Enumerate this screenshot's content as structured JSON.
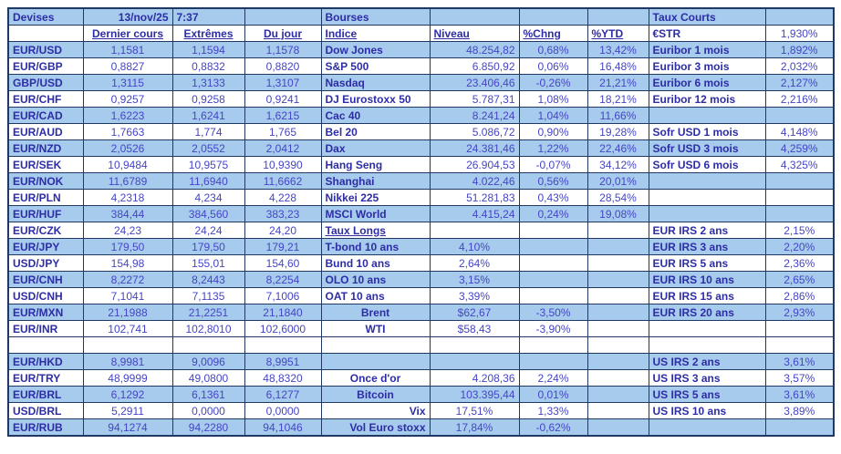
{
  "colors": {
    "row_blue": "#A7CBED",
    "grid_border": "#1F3864",
    "label_text": "#2D2DA6",
    "value_text": "#4545C5"
  },
  "devises": {
    "title": "Devises",
    "date": "13/nov/25",
    "time": "7:37",
    "headers": [
      "Dernier cours",
      "Extrêmes",
      "Du jour"
    ],
    "rows": [
      {
        "pair": "EUR/USD",
        "last": "1,1581",
        "ext": "1,1594",
        "day": "1,1578"
      },
      {
        "pair": "EUR/GBP",
        "last": "0,8827",
        "ext": "0,8832",
        "day": "0,8820"
      },
      {
        "pair": "GBP/USD",
        "last": "1,3115",
        "ext": "1,3133",
        "day": "1,3107"
      },
      {
        "pair": "EUR/CHF",
        "last": "0,9257",
        "ext": "0,9258",
        "day": "0,9241"
      },
      {
        "pair": "EUR/CAD",
        "last": "1,6223",
        "ext": "1,6241",
        "day": "1,6215"
      },
      {
        "pair": "EUR/AUD",
        "last": "1,7663",
        "ext": "1,774",
        "day": "1,765"
      },
      {
        "pair": "EUR/NZD",
        "last": "2,0526",
        "ext": "2,0552",
        "day": "2,0412"
      },
      {
        "pair": "EUR/SEK",
        "last": "10,9484",
        "ext": "10,9575",
        "day": "10,9390"
      },
      {
        "pair": "EUR/NOK",
        "last": "11,6789",
        "ext": "11,6940",
        "day": "11,6662"
      },
      {
        "pair": "EUR/PLN",
        "last": "4,2318",
        "ext": "4,234",
        "day": "4,228"
      },
      {
        "pair": "EUR/HUF",
        "last": "384,44",
        "ext": "384,560",
        "day": "383,23"
      },
      {
        "pair": "EUR/CZK",
        "last": "24,23",
        "ext": "24,24",
        "day": "24,20"
      },
      {
        "pair": "EUR/JPY",
        "last": "179,50",
        "ext": "179,50",
        "day": "179,21"
      },
      {
        "pair": "USD/JPY",
        "last": "154,98",
        "ext": "155,01",
        "day": "154,60"
      },
      {
        "pair": "EUR/CNH",
        "last": "8,2272",
        "ext": "8,2443",
        "day": "8,2254"
      },
      {
        "pair": "USD/CNH",
        "last": "7,1041",
        "ext": "7,1135",
        "day": "7,1006"
      },
      {
        "pair": "EUR/MXN",
        "last": "21,1988",
        "ext": "21,2251",
        "day": "21,1840"
      },
      {
        "pair": "EUR/INR",
        "last": "102,741",
        "ext": "102,8010",
        "day": "102,6000"
      },
      {
        "pair": "",
        "last": "",
        "ext": "",
        "day": ""
      },
      {
        "pair": "EUR/HKD",
        "last": "8,9981",
        "ext": "9,0096",
        "day": "8,9951"
      },
      {
        "pair": "EUR/TRY",
        "last": "48,9999",
        "ext": "49,0800",
        "day": "48,8320"
      },
      {
        "pair": "EUR/BRL",
        "last": "6,1292",
        "ext": "6,1361",
        "day": "6,1277"
      },
      {
        "pair": "USD/BRL",
        "last": "5,2911",
        "ext": "0,0000",
        "day": "0,0000"
      },
      {
        "pair": "EUR/RUB",
        "last": "94,1274",
        "ext": "94,2280",
        "day": "94,1046"
      }
    ]
  },
  "bourses": {
    "title": "Bourses",
    "headers": [
      "Indice",
      "Niveau",
      "%Chng",
      "%YTD"
    ],
    "rows": [
      {
        "name": "Dow Jones",
        "niveau": "48.254,82",
        "chng": "0,68%",
        "ytd": "13,42%"
      },
      {
        "name": "S&P 500",
        "niveau": "6.850,92",
        "chng": "0,06%",
        "ytd": "16,48%"
      },
      {
        "name": "Nasdaq",
        "niveau": "23.406,46",
        "chng": "-0,26%",
        "ytd": "21,21%"
      },
      {
        "name": "DJ Eurostoxx 50",
        "niveau": "5.787,31",
        "chng": "1,08%",
        "ytd": "18,21%"
      },
      {
        "name": "Cac 40",
        "niveau": "8.241,24",
        "chng": "1,04%",
        "ytd": "11,66%"
      },
      {
        "name": "Bel 20",
        "niveau": "5.086,72",
        "chng": "0,90%",
        "ytd": "19,28%"
      },
      {
        "name": "Dax",
        "niveau": "24.381,46",
        "chng": "1,22%",
        "ytd": "22,46%"
      },
      {
        "name": "Hang Seng",
        "niveau": "26.904,53",
        "chng": "-0,07%",
        "ytd": "34,12%"
      },
      {
        "name": "Shanghai",
        "niveau": "4.022,46",
        "chng": "0,56%",
        "ytd": "20,01%"
      },
      {
        "name": "Nikkei 225",
        "niveau": "51.281,83",
        "chng": "0,43%",
        "ytd": "28,54%"
      },
      {
        "name": "MSCI World",
        "niveau": "4.415,24",
        "chng": "0,24%",
        "ytd": "19,08%"
      },
      {
        "name": "Taux Longs",
        "niveau": "",
        "chng": "",
        "ytd": ""
      },
      {
        "name": "T-bond 10 ans",
        "niveau": "4,10%",
        "chng": "",
        "ytd": ""
      },
      {
        "name": "Bund 10 ans",
        "niveau": "2,64%",
        "chng": "",
        "ytd": ""
      },
      {
        "name": "OLO 10 ans",
        "niveau": "3,15%",
        "chng": "",
        "ytd": ""
      },
      {
        "name": "OAT 10 ans",
        "niveau": "3,39%",
        "chng": "",
        "ytd": ""
      },
      {
        "name": "Brent",
        "niveau": "$62,67",
        "chng": "-3,50%",
        "ytd": ""
      },
      {
        "name": "WTI",
        "niveau": "$58,43",
        "chng": "-3,90%",
        "ytd": ""
      },
      {
        "name": "",
        "niveau": "",
        "chng": "",
        "ytd": ""
      },
      {
        "name": "",
        "niveau": "",
        "chng": "",
        "ytd": ""
      },
      {
        "name": "Once d'or",
        "niveau": "4.208,36",
        "chng": "2,24%",
        "ytd": ""
      },
      {
        "name": "Bitcoin",
        "niveau": "103.395,44",
        "chng": "0,01%",
        "ytd": ""
      },
      {
        "name": "Vix",
        "niveau": "17,51%",
        "chng": "1,33%",
        "ytd": ""
      },
      {
        "name": "Vol Euro stoxx",
        "niveau": "17,84%",
        "chng": "-0,62%",
        "ytd": ""
      }
    ]
  },
  "taux_courts": {
    "title": "Taux Courts",
    "rows": [
      {
        "label": "€STR",
        "value": "1,930%"
      },
      {
        "label": "Euribor 1 mois",
        "value": "1,892%"
      },
      {
        "label": "Euribor 3 mois",
        "value": "2,032%"
      },
      {
        "label": "Euribor 6 mois",
        "value": "2,127%"
      },
      {
        "label": "Euribor 12 mois",
        "value": "2,216%"
      },
      {
        "label": "",
        "value": ""
      },
      {
        "label": "Sofr USD 1 mois",
        "value": "4,148%"
      },
      {
        "label": "Sofr USD 3 mois",
        "value": "4,259%"
      },
      {
        "label": "Sofr USD 6 mois",
        "value": "4,325%"
      },
      {
        "label": "",
        "value": ""
      },
      {
        "label": "",
        "value": ""
      },
      {
        "label": "",
        "value": ""
      },
      {
        "label": "EUR IRS 2 ans",
        "value": "2,15%"
      },
      {
        "label": "EUR IRS 3 ans",
        "value": "2,20%"
      },
      {
        "label": "EUR IRS 5 ans",
        "value": "2,36%"
      },
      {
        "label": "EUR IRS 10 ans",
        "value": "2,65%"
      },
      {
        "label": "EUR IRS 15 ans",
        "value": "2,86%"
      },
      {
        "label": "EUR IRS 20 ans",
        "value": "2,93%"
      },
      {
        "label": "",
        "value": ""
      },
      {
        "label": "",
        "value": ""
      },
      {
        "label": "US IRS 2 ans",
        "value": "3,61%"
      },
      {
        "label": "US IRS 3 ans",
        "value": "3,57%"
      },
      {
        "label": "US IRS 5 ans",
        "value": "3,61%"
      },
      {
        "label": "US IRS 10 ans",
        "value": "3,89%"
      },
      {
        "label": "",
        "value": ""
      }
    ]
  }
}
